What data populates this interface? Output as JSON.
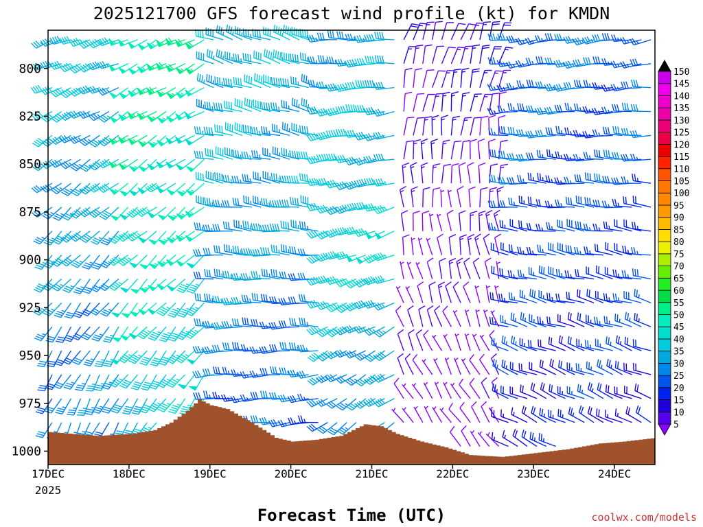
{
  "chart_data": {
    "type": "wind_profile",
    "title": "2025121700 GFS forecast wind profile (kt) for KMDN",
    "xlabel": "Forecast Time (UTC)",
    "ylabel": "",
    "x_ticks": [
      "17DEC",
      "18DEC",
      "19DEC",
      "20DEC",
      "21DEC",
      "22DEC",
      "23DEC",
      "24DEC"
    ],
    "x_year_label": "2025",
    "y_ticks": [
      800,
      825,
      850,
      875,
      900,
      925,
      950,
      975,
      1000
    ],
    "ylim_hpa": [
      780,
      1007
    ],
    "xlim_days": [
      0,
      7.5
    ],
    "colorbar": {
      "levels": [
        5,
        10,
        15,
        20,
        25,
        30,
        35,
        40,
        45,
        50,
        55,
        60,
        65,
        70,
        75,
        80,
        85,
        90,
        95,
        100,
        105,
        110,
        115,
        120,
        125,
        130,
        135,
        140,
        145,
        150
      ],
      "colors": [
        "#8800ff",
        "#5500ee",
        "#2200dd",
        "#0022ee",
        "#0055ee",
        "#0088ee",
        "#00aadd",
        "#00ccdd",
        "#00ddcc",
        "#00eebb",
        "#00ee88",
        "#00dd44",
        "#22ee22",
        "#66ee00",
        "#aaee00",
        "#eeee00",
        "#ffdd00",
        "#ffbb00",
        "#ff9900",
        "#ff8800",
        "#ff7700",
        "#ff5500",
        "#ff2200",
        "#ee0000",
        "#ee0044",
        "#ee0077",
        "#ee00aa",
        "#ee00cc",
        "#ee00ee",
        "#cc00ee"
      ]
    },
    "surface_pressure": {
      "t": [
        0,
        0.3,
        0.6,
        1.0,
        1.3,
        1.5,
        1.7,
        1.85,
        2.0,
        2.2,
        2.5,
        2.8,
        3.0,
        3.3,
        3.6,
        3.9,
        4.1,
        4.3,
        4.6,
        4.9,
        5.2,
        5.6,
        6.0,
        6.4,
        6.8,
        7.1,
        7.5
      ],
      "hpa": [
        990,
        991,
        992,
        991,
        989,
        985,
        979,
        973,
        976,
        978,
        985,
        993,
        995,
        994,
        992,
        986,
        987,
        991,
        995,
        998,
        1002,
        1003,
        1001,
        999,
        996,
        995,
        993
      ]
    },
    "wind": [
      {
        "t_from": 0.0,
        "t_to": 0.9,
        "speed_low": 30,
        "speed_mid": 35,
        "speed_high": 40,
        "dir_low": 200,
        "dir_high": 250
      },
      {
        "t_from": 0.9,
        "t_to": 2.0,
        "speed_low": 40,
        "speed_mid": 50,
        "speed_high": 55,
        "dir_low": 210,
        "dir_high": 245
      },
      {
        "t_from": 2.0,
        "t_to": 3.4,
        "speed_low": 25,
        "speed_mid": 35,
        "speed_high": 40,
        "dir_low": 260,
        "dir_high": 290
      },
      {
        "t_from": 3.4,
        "t_to": 4.3,
        "speed_low": 30,
        "speed_mid": 45,
        "speed_high": 35,
        "dir_low": 230,
        "dir_high": 270
      },
      {
        "t_from": 4.3,
        "t_to": 5.6,
        "speed_low": 5,
        "speed_mid": 10,
        "speed_high": 15,
        "dir_low": 320,
        "dir_high": 20
      },
      {
        "t_from": 5.6,
        "t_to": 7.5,
        "speed_low": 20,
        "speed_mid": 25,
        "speed_high": 30,
        "dir_low": 300,
        "dir_high": 260
      }
    ]
  },
  "credit": "coolwx.com/models"
}
